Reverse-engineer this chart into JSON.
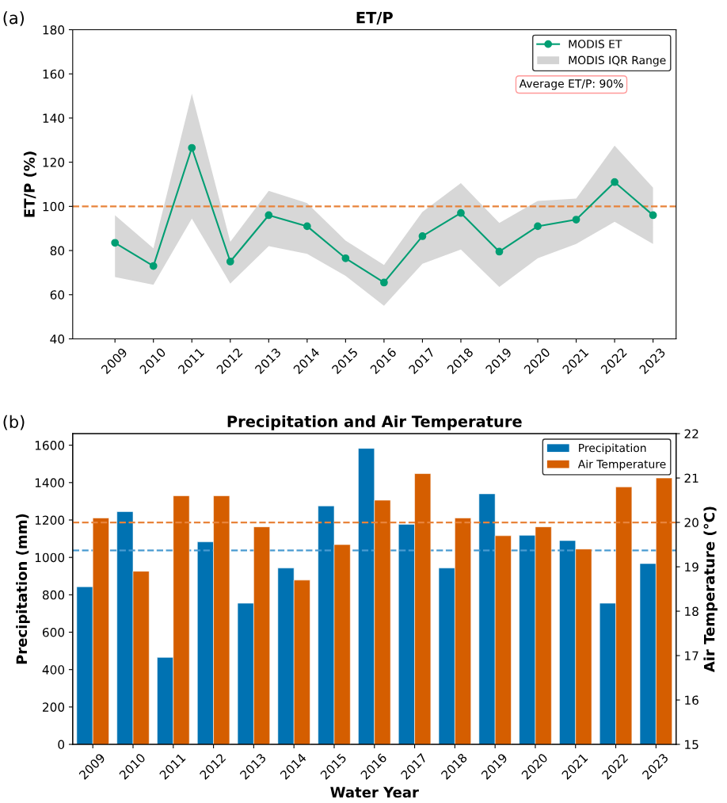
{
  "chart_data": [
    {
      "type": "line",
      "title": "ET/P",
      "ylabel": "ET/P (%)",
      "categories": [
        "2009",
        "2010",
        "2011",
        "2012",
        "2013",
        "2014",
        "2015",
        "2016",
        "2017",
        "2018",
        "2019",
        "2020",
        "2021",
        "2022",
        "2023"
      ],
      "series": [
        {
          "name": "MODIS ET",
          "type": "line",
          "color": "#009e73",
          "values": [
            83.5,
            73,
            126.5,
            75,
            96,
            91,
            76.5,
            65.5,
            86.5,
            97,
            79.5,
            91,
            94,
            111,
            96
          ]
        },
        {
          "name": "MODIS IQR Range",
          "type": "area",
          "color": "#d3d3d3",
          "values": [
            null,
            null,
            null,
            null,
            null,
            null,
            null,
            null,
            null,
            null,
            null,
            null,
            null,
            null,
            null
          ],
          "lower": [
            68,
            64.5,
            94.5,
            65,
            82,
            78.5,
            68.5,
            55,
            74,
            80.5,
            63.5,
            76.5,
            83,
            93,
            83
          ],
          "upper": [
            96,
            81,
            151,
            84,
            107,
            101.5,
            84.5,
            73.5,
            97.5,
            110.5,
            92.5,
            102.5,
            103.5,
            127.5,
            108.5
          ]
        }
      ],
      "ylim": [
        40,
        180
      ],
      "yticks": [
        40,
        60,
        80,
        100,
        120,
        140,
        160,
        180
      ],
      "ref_lines": [
        {
          "axis": "y",
          "value": 100,
          "color": "#e8833a",
          "line_style": "dashed"
        }
      ],
      "annotations": [
        "(a)",
        "Average ET/P: 90%"
      ],
      "marker": "circle",
      "legend": "top right",
      "grid": false
    },
    {
      "type": "bar",
      "title": "Precipitation and Air Temperature",
      "xlabel": "Water Year",
      "ylabel": "Precipitation (mm)",
      "y2label": "Air Temperature (°C)",
      "categories": [
        "2009",
        "2010",
        "2011",
        "2012",
        "2013",
        "2014",
        "2015",
        "2016",
        "2017",
        "2018",
        "2019",
        "2020",
        "2021",
        "2022",
        "2023"
      ],
      "series": [
        {
          "name": "Precipitation",
          "color": "#0072b2",
          "values": [
            843,
            1245,
            465,
            1083,
            755,
            943,
            1275,
            1583,
            1177,
            943,
            1340,
            1118,
            1090,
            755,
            967
          ]
        },
        {
          "name": "Air Temperature",
          "color": "#d55e00",
          "axis": "y2",
          "values": [
            20.1,
            18.9,
            20.6,
            20.6,
            19.9,
            18.7,
            19.5,
            20.5,
            21.1,
            20.1,
            19.7,
            19.9,
            19.4,
            20.8,
            21.0
          ]
        }
      ],
      "ylim": [
        0,
        1662
      ],
      "yticks": [
        0,
        200,
        400,
        600,
        800,
        1000,
        1200,
        1400,
        1600
      ],
      "y2lim": [
        15,
        22
      ],
      "y2ticks": [
        15,
        16,
        17,
        18,
        19,
        20,
        21,
        22
      ],
      "ref_lines": [
        {
          "axis": "y",
          "value": 1037,
          "color": "#4a9bd1",
          "line_style": "dashed"
        },
        {
          "axis": "y2",
          "value": 20.0,
          "color": "#e8833a",
          "line_style": "dashed"
        }
      ],
      "annotations": [
        "(b)"
      ],
      "legend": "top right",
      "grid": false
    }
  ]
}
